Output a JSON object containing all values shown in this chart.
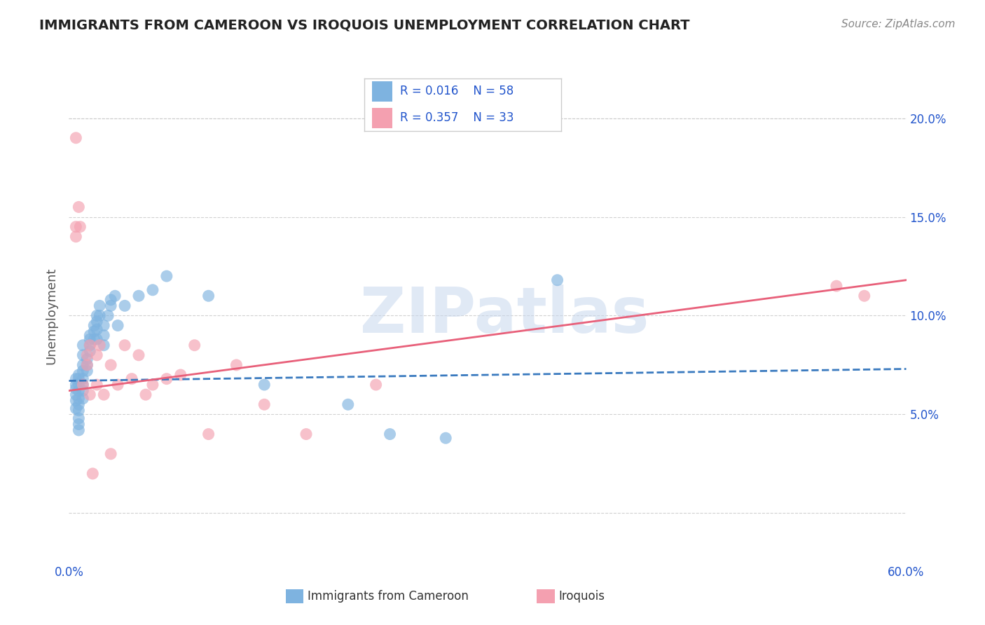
{
  "title": "IMMIGRANTS FROM CAMEROON VS IROQUOIS UNEMPLOYMENT CORRELATION CHART",
  "source": "Source: ZipAtlas.com",
  "ylabel": "Unemployment",
  "xlim": [
    0.0,
    0.6
  ],
  "ylim": [
    -0.025,
    0.225
  ],
  "yticks": [
    0.0,
    0.05,
    0.1,
    0.15,
    0.2
  ],
  "ytick_labels": [
    "",
    "5.0%",
    "10.0%",
    "15.0%",
    "20.0%"
  ],
  "xticks": [
    0.0,
    0.1,
    0.2,
    0.3,
    0.4,
    0.5,
    0.6
  ],
  "xtick_labels": [
    "0.0%",
    "",
    "",
    "",
    "",
    "",
    "60.0%"
  ],
  "watermark": "ZIPatlas",
  "blue_color": "#7eb3e0",
  "pink_color": "#f4a0b0",
  "blue_line_color": "#3a7abf",
  "pink_line_color": "#e8607a",
  "legend_text_color": "#2255cc",
  "title_color": "#222222",
  "axis_label_color": "#2255cc",
  "grid_color": "#cccccc",
  "blue_scatter_x": [
    0.005,
    0.005,
    0.005,
    0.005,
    0.005,
    0.005,
    0.007,
    0.007,
    0.007,
    0.007,
    0.007,
    0.007,
    0.007,
    0.007,
    0.007,
    0.007,
    0.01,
    0.01,
    0.01,
    0.01,
    0.01,
    0.01,
    0.01,
    0.01,
    0.013,
    0.013,
    0.013,
    0.015,
    0.015,
    0.015,
    0.015,
    0.018,
    0.018,
    0.018,
    0.02,
    0.02,
    0.02,
    0.02,
    0.022,
    0.022,
    0.025,
    0.025,
    0.025,
    0.028,
    0.03,
    0.03,
    0.033,
    0.035,
    0.04,
    0.05,
    0.06,
    0.07,
    0.1,
    0.14,
    0.2,
    0.23,
    0.27,
    0.35
  ],
  "blue_scatter_y": [
    0.068,
    0.065,
    0.063,
    0.06,
    0.057,
    0.053,
    0.07,
    0.068,
    0.065,
    0.062,
    0.058,
    0.055,
    0.052,
    0.048,
    0.045,
    0.042,
    0.075,
    0.072,
    0.068,
    0.065,
    0.062,
    0.058,
    0.08,
    0.085,
    0.078,
    0.075,
    0.072,
    0.09,
    0.088,
    0.085,
    0.082,
    0.095,
    0.092,
    0.088,
    0.1,
    0.097,
    0.093,
    0.088,
    0.105,
    0.1,
    0.095,
    0.09,
    0.085,
    0.1,
    0.108,
    0.105,
    0.11,
    0.095,
    0.105,
    0.11,
    0.113,
    0.12,
    0.11,
    0.065,
    0.055,
    0.04,
    0.038,
    0.118
  ],
  "pink_scatter_x": [
    0.005,
    0.005,
    0.005,
    0.007,
    0.008,
    0.01,
    0.013,
    0.013,
    0.015,
    0.015,
    0.017,
    0.02,
    0.02,
    0.022,
    0.025,
    0.03,
    0.03,
    0.035,
    0.04,
    0.045,
    0.05,
    0.055,
    0.06,
    0.07,
    0.08,
    0.09,
    0.1,
    0.12,
    0.14,
    0.17,
    0.22,
    0.55,
    0.57
  ],
  "pink_scatter_y": [
    0.19,
    0.145,
    0.14,
    0.155,
    0.145,
    0.065,
    0.08,
    0.075,
    0.085,
    0.06,
    0.02,
    0.08,
    0.065,
    0.085,
    0.06,
    0.075,
    0.03,
    0.065,
    0.085,
    0.068,
    0.08,
    0.06,
    0.065,
    0.068,
    0.07,
    0.085,
    0.04,
    0.075,
    0.055,
    0.04,
    0.065,
    0.115,
    0.11
  ],
  "blue_trendline_x": [
    0.0,
    0.6
  ],
  "blue_trendline_y": [
    0.067,
    0.073
  ],
  "pink_trendline_x": [
    0.0,
    0.6
  ],
  "pink_trendline_y": [
    0.062,
    0.118
  ]
}
